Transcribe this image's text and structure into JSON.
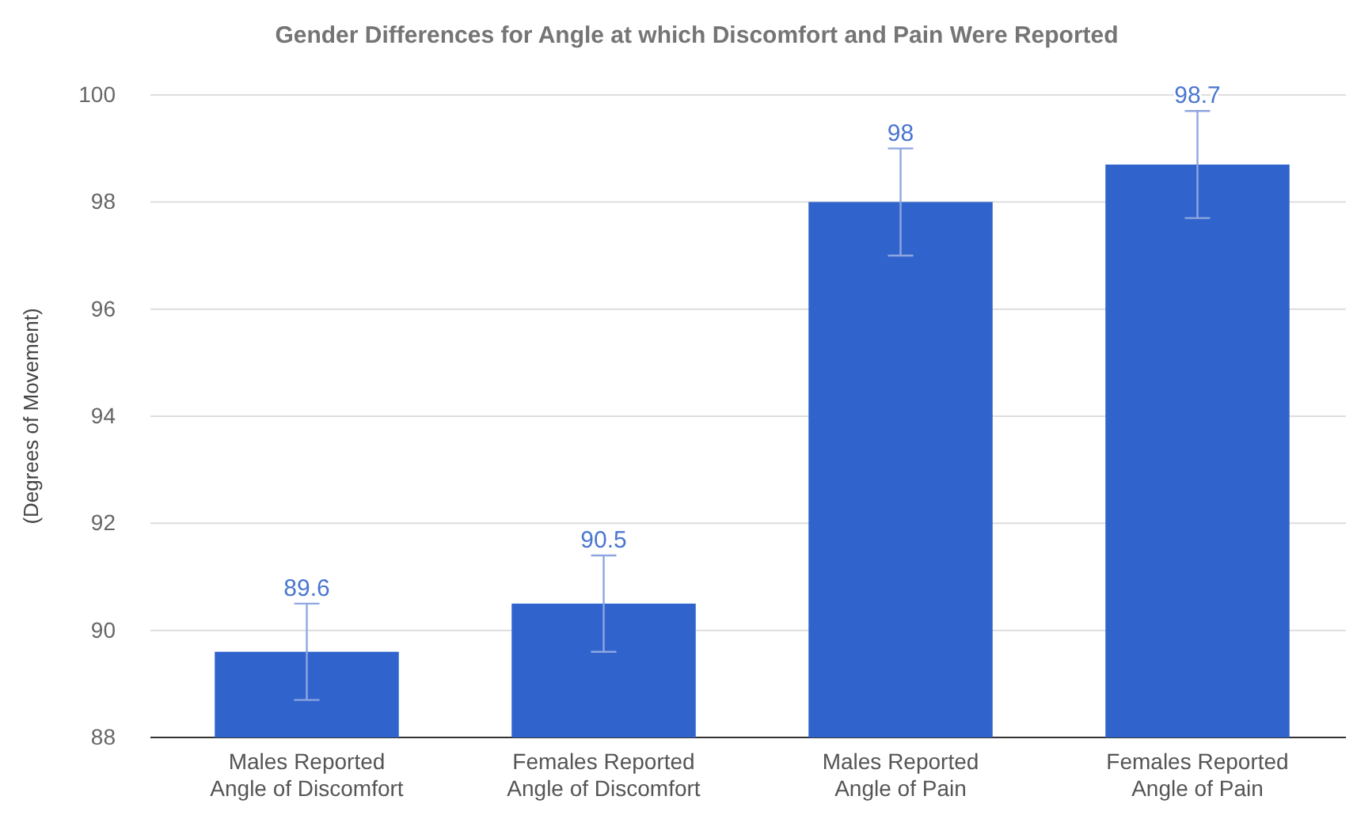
{
  "chart_data": {
    "type": "bar",
    "title": "Gender Differences for Angle at which Discomfort and Pain Were Reported",
    "ylabel": "(Degrees of Movement)",
    "categories": [
      "Males Reported Angle of Discomfort",
      "Females Reported Angle of Discomfort",
      "Males Reported Angle of Pain",
      "Females Reported Angle of Pain"
    ],
    "values": [
      89.6,
      90.5,
      98,
      98.7
    ],
    "errors": [
      0.9,
      0.9,
      1,
      1
    ],
    "color": "#3064cc",
    "ylim": [
      88,
      100
    ],
    "yticks": [
      88,
      90,
      92,
      94,
      96,
      98,
      100
    ],
    "grid": "y",
    "data_labels": true
  }
}
